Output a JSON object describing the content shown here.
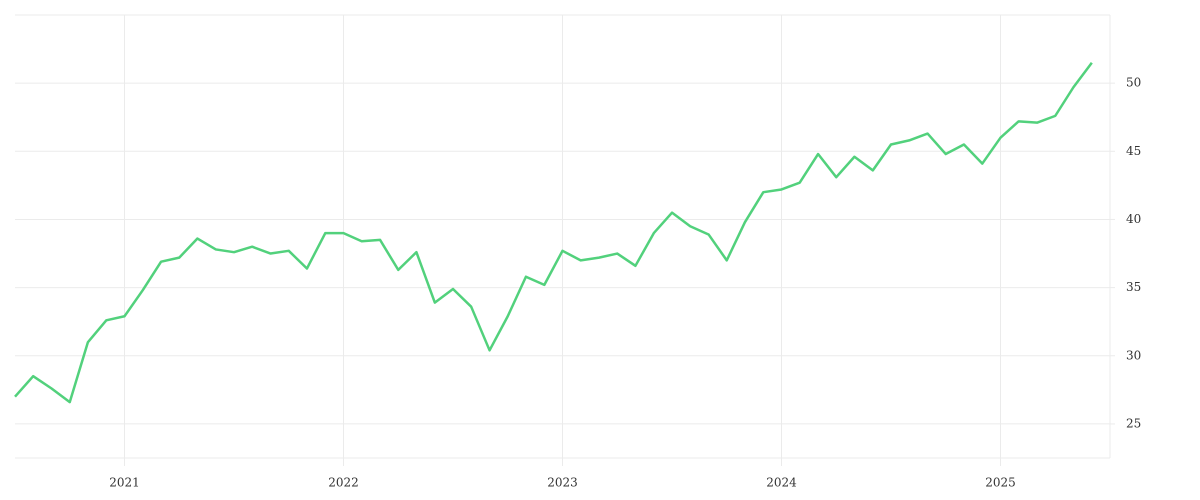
{
  "chart_data": {
    "type": "line",
    "x": [
      2020.5,
      2020.583,
      2020.667,
      2020.75,
      2020.833,
      2020.917,
      2021.0,
      2021.083,
      2021.167,
      2021.25,
      2021.333,
      2021.417,
      2021.5,
      2021.583,
      2021.667,
      2021.75,
      2021.833,
      2021.917,
      2022.0,
      2022.083,
      2022.167,
      2022.25,
      2022.333,
      2022.417,
      2022.5,
      2022.583,
      2022.667,
      2022.75,
      2022.833,
      2022.917,
      2023.0,
      2023.083,
      2023.167,
      2023.25,
      2023.333,
      2023.417,
      2023.5,
      2023.583,
      2023.667,
      2023.75,
      2023.833,
      2023.917,
      2024.0,
      2024.083,
      2024.167,
      2024.25,
      2024.333,
      2024.417,
      2024.5,
      2024.583,
      2024.667,
      2024.75,
      2024.833,
      2024.917,
      2025.0,
      2025.083,
      2025.167,
      2025.25,
      2025.333,
      2025.417
    ],
    "series": [
      {
        "color": "#52d17c",
        "values": [
          27.0,
          28.5,
          27.6,
          26.6,
          31.0,
          32.6,
          32.9,
          34.8,
          36.9,
          37.2,
          38.6,
          37.8,
          37.6,
          38.0,
          37.5,
          37.7,
          36.4,
          39.0,
          39.0,
          38.4,
          38.5,
          36.3,
          37.6,
          33.9,
          34.9,
          33.6,
          30.4,
          32.9,
          35.8,
          35.2,
          37.7,
          37.0,
          37.2,
          37.5,
          36.6,
          39.0,
          40.5,
          39.5,
          38.9,
          37.0,
          39.8,
          42.0,
          42.2,
          42.7,
          44.8,
          43.1,
          44.6,
          43.6,
          45.5,
          45.8,
          46.3,
          44.8,
          45.5,
          44.1,
          46.0,
          47.2,
          47.1,
          47.6,
          49.7,
          51.5
        ]
      }
    ],
    "xlim": [
      2020.5,
      2025.5
    ],
    "xticks": [
      2021,
      2022,
      2023,
      2024,
      2025
    ],
    "ylim": [
      22.5,
      55
    ],
    "yticks": [
      25,
      30,
      35,
      40,
      45,
      50
    ],
    "grid": true
  }
}
